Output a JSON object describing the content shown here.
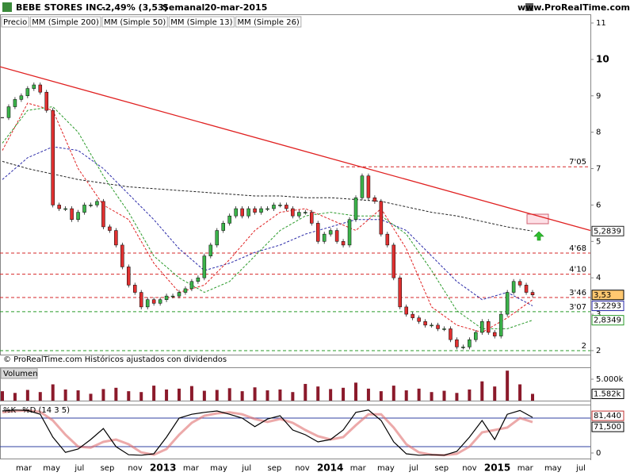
{
  "header": {
    "title": "BEBE STORES INC.",
    "change": "-2,49% (3,53)",
    "period": "Semanal",
    "date": "20-mar-2015",
    "site": "www.ProRealTime.com"
  },
  "footer": "© ProRealTime.com Históricos ajustados con dividendos",
  "chart_data": [
    {
      "type": "candlestick",
      "ylim": [
        1.89,
        11.24
      ],
      "yticks": [
        2,
        3,
        4,
        5,
        6,
        7,
        8,
        9,
        10,
        11
      ],
      "series": [
        {
          "name": "Precio",
          "color": "#000000",
          "up_color": "#3cb44b",
          "down_color": "#e03030",
          "last_label": "3,53",
          "values": [
            8.4,
            8.7,
            8.9,
            9.0,
            9.2,
            9.3,
            9.1,
            8.6,
            6.0,
            5.9,
            5.9,
            5.6,
            5.8,
            6.0,
            6.0,
            6.1,
            5.4,
            5.3,
            4.9,
            4.3,
            3.8,
            3.6,
            3.2,
            3.4,
            3.3,
            3.4,
            3.5,
            3.5,
            3.6,
            3.7,
            3.9,
            4.0,
            4.6,
            4.9,
            5.3,
            5.5,
            5.7,
            5.9,
            5.7,
            5.9,
            5.8,
            5.9,
            5.9,
            6.0,
            6.0,
            5.9,
            5.7,
            5.8,
            5.8,
            5.5,
            5.0,
            5.2,
            5.3,
            5.0,
            4.9,
            5.6,
            6.2,
            6.8,
            6.2,
            6.1,
            5.2,
            4.9,
            4.0,
            3.2,
            3.0,
            2.9,
            2.8,
            2.7,
            2.7,
            2.6,
            2.6,
            2.3,
            2.1,
            2.1,
            2.3,
            2.5,
            2.8,
            2.5,
            2.4,
            3.0,
            3.6,
            3.9,
            3.8,
            3.6,
            3.53
          ]
        },
        {
          "name": "MM (Simple 200)",
          "color": "#222222",
          "last_label": "5,2839",
          "values": [
            7.2,
            7.0,
            6.85,
            6.7,
            6.6,
            6.5,
            6.45,
            6.4,
            6.35,
            6.3,
            6.25,
            6.25,
            6.2,
            6.2,
            6.15,
            6.1,
            5.95,
            5.8,
            5.7,
            5.55,
            5.4,
            5.2839
          ]
        },
        {
          "name": "MM (Simple 50)",
          "color": "#2a2aa8",
          "last_label": "3,2293",
          "values": [
            6.7,
            7.3,
            7.6,
            7.5,
            7.0,
            6.3,
            5.6,
            4.8,
            4.2,
            4.4,
            4.7,
            4.9,
            5.2,
            5.4,
            5.6,
            5.6,
            5.3,
            4.6,
            3.9,
            3.4,
            3.6,
            3.2293
          ]
        },
        {
          "name": "MM (Simple 13)",
          "color": "#e02020",
          "values": [
            7.5,
            8.8,
            8.6,
            7.0,
            6.0,
            5.6,
            4.4,
            3.6,
            3.8,
            4.5,
            5.3,
            5.8,
            5.9,
            5.6,
            5.3,
            5.9,
            4.8,
            3.2,
            2.7,
            2.5,
            2.9,
            3.4
          ]
        },
        {
          "name": "MM (Simple 26)",
          "color": "#2a9a2a",
          "last_label": "2,8349",
          "values": [
            7.7,
            8.6,
            8.7,
            8.0,
            6.8,
            5.8,
            4.6,
            4.0,
            3.6,
            3.9,
            4.6,
            5.3,
            5.7,
            5.8,
            5.7,
            5.7,
            5.2,
            4.2,
            3.1,
            2.6,
            2.6,
            2.8349
          ]
        }
      ],
      "trendline": {
        "color": "#e02020",
        "values": [
          9.8,
          5.3
        ]
      },
      "levels": [
        {
          "value": 7.05,
          "label": "7'05",
          "color": "#d62728"
        },
        {
          "value": 4.68,
          "label": "4'68",
          "color": "#d62728"
        },
        {
          "value": 4.1,
          "label": "4'10",
          "color": "#d62728"
        },
        {
          "value": 3.46,
          "label": "3'46",
          "color": "#d62728"
        },
        {
          "value": 3.07,
          "label": "3'07",
          "color": "#2a9a2a"
        },
        {
          "value": 2,
          "color": "#2a9a2a"
        }
      ]
    },
    {
      "type": "bar",
      "title": "Volumen",
      "color": "#8b1a2b",
      "ylim": [
        0,
        7778
      ],
      "yticks": [
        {
          "value": 5000,
          "label": "5.000k"
        }
      ],
      "values": [
        2200,
        1800,
        2500,
        2000,
        3800,
        2600,
        2400,
        1600,
        2700,
        3000,
        2200,
        2000,
        3500,
        2600,
        2800,
        3400,
        2300,
        2500,
        2900,
        2200,
        3100,
        2400,
        2600,
        2000,
        3900,
        3300,
        2700,
        3000,
        4200,
        2800,
        2200,
        3500,
        2400,
        2800,
        2000,
        2300,
        1800,
        2600,
        4500,
        3300,
        7000,
        3800,
        1582
      ],
      "last_label": "1.582k"
    },
    {
      "type": "line",
      "ylim": [
        0,
        100
      ],
      "yticks": [
        0
      ],
      "bands": [
        20,
        80
      ],
      "series": [
        {
          "name": "%K",
          "color": "#000000",
          "last_label": "81,440",
          "values": [
            95,
            97,
            96,
            88,
            40,
            8,
            15,
            35,
            58,
            20,
            3,
            2,
            5,
            40,
            80,
            88,
            92,
            95,
            88,
            80,
            62,
            78,
            85,
            55,
            45,
            30,
            35,
            55,
            92,
            97,
            75,
            30,
            5,
            2,
            3,
            2,
            10,
            40,
            75,
            35,
            88,
            96,
            81.44
          ]
        },
        {
          "name": "%D (14 3 5)",
          "color": "#e07070",
          "last_label": "71,500",
          "values": [
            92,
            95,
            96,
            93,
            75,
            45,
            20,
            18,
            30,
            35,
            25,
            8,
            3,
            15,
            45,
            70,
            85,
            90,
            92,
            88,
            78,
            72,
            78,
            70,
            55,
            42,
            35,
            40,
            65,
            88,
            88,
            60,
            25,
            8,
            3,
            2,
            5,
            20,
            50,
            55,
            60,
            80,
            71.5
          ]
        }
      ],
      "x_tick_labels": [
        "mar",
        "may",
        "jul",
        "sep",
        "nov",
        "2013",
        "mar",
        "may",
        "jul",
        "sep",
        "nov",
        "2014",
        "mar",
        "may",
        "jul",
        "sep",
        "nov",
        "2015",
        "mar",
        "may",
        "jul"
      ]
    }
  ]
}
